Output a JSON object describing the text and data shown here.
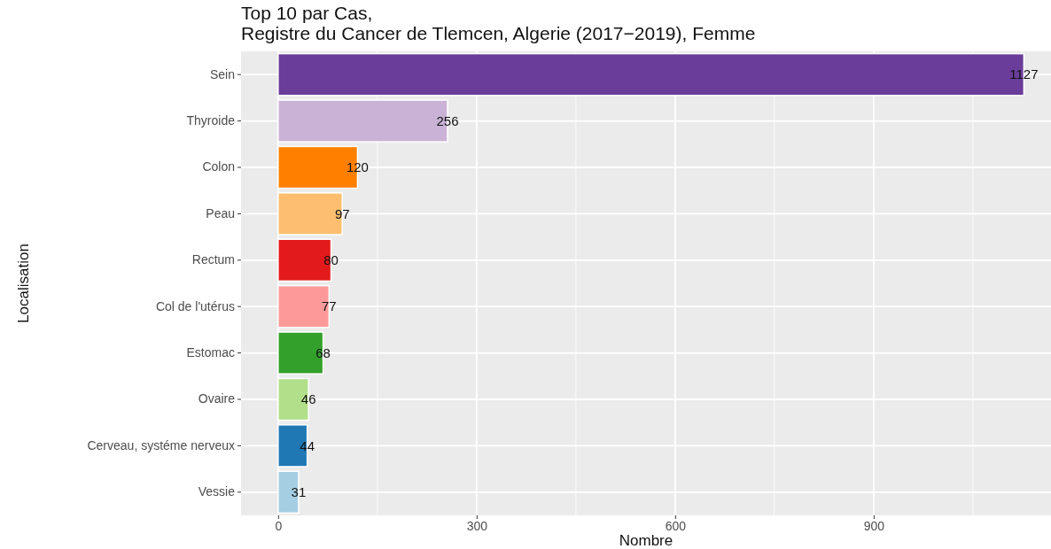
{
  "chart_data": {
    "type": "bar",
    "orientation": "horizontal",
    "title": "Top 10 par Cas,\nRegistre du Cancer de Tlemcen, Algerie (2017−2019), Femme",
    "xlabel": "Nombre",
    "ylabel": "Localisation",
    "categories": [
      "Sein",
      "Thyroide",
      "Colon",
      "Peau",
      "Rectum",
      "Col de l'utérus",
      "Estomac",
      "Ovaire",
      "Cerveau, systéme nerveux",
      "Vessie"
    ],
    "values": [
      1127,
      256,
      120,
      97,
      80,
      77,
      68,
      46,
      44,
      31
    ],
    "colors": [
      "#6a3d9a",
      "#cab2d6",
      "#ff7f00",
      "#fdbf6f",
      "#e31a1c",
      "#fb9a99",
      "#33a02c",
      "#b2df8a",
      "#1f78b4",
      "#a6cee3"
    ],
    "xlim": [
      -56,
      1168
    ],
    "xticks": [
      0,
      {
        "value": 150,
        "label": null
      },
      300,
      {
        "value": 450,
        "label": null
      },
      600,
      {
        "value": 750,
        "label": null
      },
      900,
      {
        "value": 1050,
        "label": null
      }
    ],
    "grid": true,
    "data_labels": true
  }
}
